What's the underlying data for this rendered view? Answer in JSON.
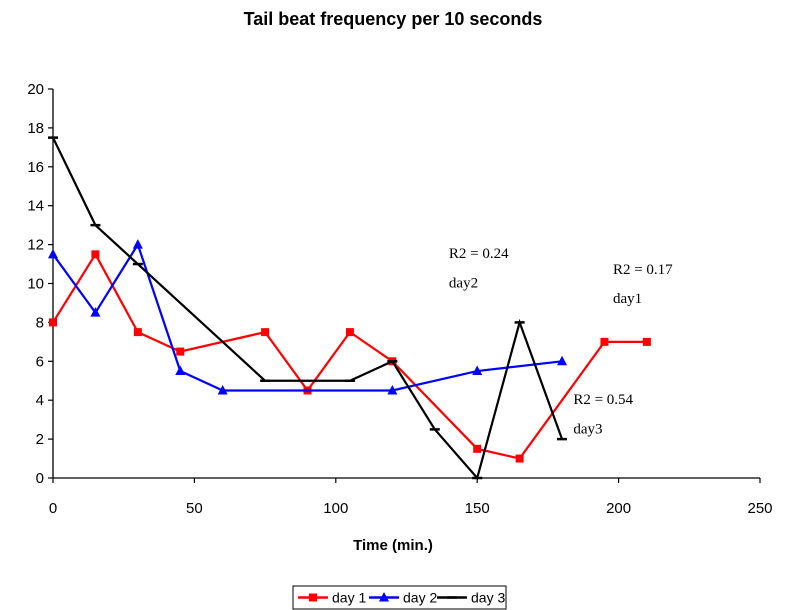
{
  "chart_data": {
    "type": "line",
    "title": "Tail beat frequency per 10 seconds",
    "xlabel": "Time (min.)",
    "ylabel": "",
    "xlim": [
      0,
      250
    ],
    "ylim": [
      0,
      20
    ],
    "x_ticks": [
      0,
      50,
      100,
      150,
      200,
      250
    ],
    "y_ticks": [
      0,
      2,
      4,
      6,
      8,
      10,
      12,
      14,
      16,
      18,
      20
    ],
    "grid": false,
    "legend_position": "bottom",
    "series": [
      {
        "name": "day 1",
        "color": "#ff0000",
        "marker": "square",
        "x": [
          0,
          15,
          30,
          45,
          75,
          90,
          105,
          120,
          150,
          165,
          195,
          210
        ],
        "y": [
          8,
          11.5,
          7.5,
          6.5,
          7.5,
          4.5,
          7.5,
          6,
          1.5,
          1,
          7,
          7
        ]
      },
      {
        "name": "day 2",
        "color": "#0000ff",
        "marker": "triangle",
        "x": [
          0,
          15,
          30,
          45,
          60,
          120,
          150,
          180
        ],
        "y": [
          11.5,
          8.5,
          12,
          5.5,
          4.5,
          4.5,
          5.5,
          6
        ]
      },
      {
        "name": "day 3",
        "color": "#000000",
        "marker": "dash",
        "x": [
          0,
          15,
          30,
          75,
          105,
          120,
          135,
          150,
          165,
          180
        ],
        "y": [
          17.5,
          13,
          11,
          5,
          5,
          6,
          2.5,
          0,
          8,
          2
        ]
      }
    ],
    "annotations": [
      {
        "text": "R2 = 0.24",
        "x": 140,
        "y": 11.3
      },
      {
        "text": "day2",
        "x": 140,
        "y": 9.8
      },
      {
        "text": "R2 = 0.17",
        "x": 198,
        "y": 10.5
      },
      {
        "text": "day1",
        "x": 198,
        "y": 9.0
      },
      {
        "text": "R2 = 0.54",
        "x": 184,
        "y": 3.8
      },
      {
        "text": "day3",
        "x": 184,
        "y": 2.3
      }
    ]
  }
}
